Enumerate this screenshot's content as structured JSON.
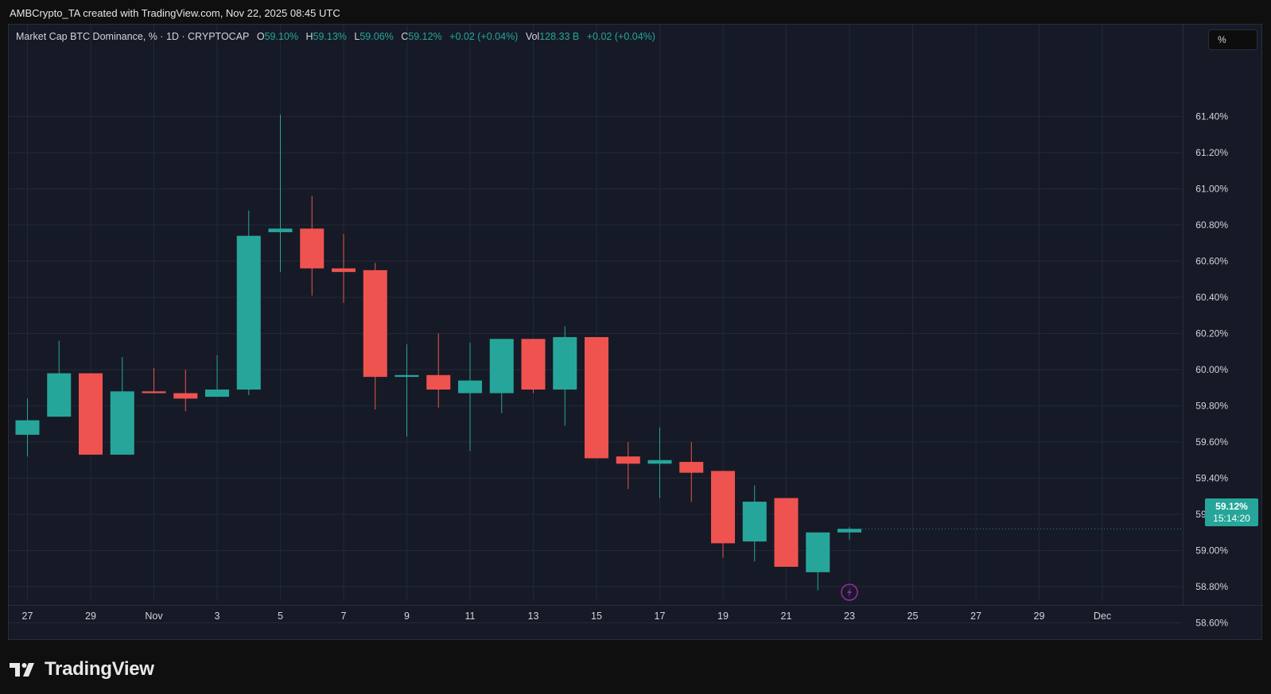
{
  "header": {
    "attribution": "AMBCrypto_TA created with TradingView.com, Nov 22, 2025 08:45 UTC"
  },
  "legend": {
    "symbol": "Market Cap BTC Dominance, % · 1D · CRYPTOCAP",
    "open_label": "O",
    "open": "59.10%",
    "high_label": "H",
    "high": "59.13%",
    "low_label": "L",
    "low": "59.06%",
    "close_label": "C",
    "close": "59.12%",
    "change": "+0.02 (+0.04%)",
    "vol_label": "Vol",
    "vol": "128.33 B",
    "vol_change": "+0.02 (+0.04%)"
  },
  "toolbar": {
    "mode_label": "%"
  },
  "last_price": {
    "value": "59.12%",
    "countdown": "15:14:20"
  },
  "brand": {
    "name": "TradingView",
    "logo_icon": "tradingview-logo-icon"
  },
  "event_icon": "lightning-event-icon",
  "colors": {
    "up": "#26a69a",
    "down": "#ef5350",
    "background": "#161a26",
    "grid": "#232838",
    "event": "#9c27b0"
  },
  "chart_data": {
    "type": "candlestick",
    "title": "Market Cap BTC Dominance, % · 1D · CRYPTOCAP",
    "ylabel": "%",
    "ylim": [
      58.5,
      61.6
    ],
    "y_ticks": [
      "61.40%",
      "61.20%",
      "61.00%",
      "60.80%",
      "60.60%",
      "60.40%",
      "60.20%",
      "60.00%",
      "59.80%",
      "59.60%",
      "59.40%",
      "59.20%",
      "59.00%",
      "58.80%",
      "58.60%"
    ],
    "x_tick_labels": [
      "27",
      "29",
      "Nov",
      "3",
      "5",
      "7",
      "9",
      "11",
      "13",
      "15",
      "17",
      "19",
      "21",
      "23",
      "25",
      "27",
      "29",
      "Dec"
    ],
    "grid": true,
    "candles": [
      {
        "date": "2025-10-27",
        "open": 59.64,
        "high": 59.84,
        "low": 59.52,
        "close": 59.72
      },
      {
        "date": "2025-10-28",
        "open": 59.74,
        "high": 60.16,
        "low": 59.74,
        "close": 59.98
      },
      {
        "date": "2025-10-29",
        "open": 59.98,
        "high": 59.98,
        "low": 59.53,
        "close": 59.53
      },
      {
        "date": "2025-10-30",
        "open": 59.53,
        "high": 60.07,
        "low": 59.53,
        "close": 59.88
      },
      {
        "date": "2025-10-31",
        "open": 59.88,
        "high": 60.01,
        "low": 59.87,
        "close": 59.87
      },
      {
        "date": "2025-11-01",
        "open": 59.87,
        "high": 60.0,
        "low": 59.77,
        "close": 59.84
      },
      {
        "date": "2025-11-02",
        "open": 59.85,
        "high": 60.08,
        "low": 59.85,
        "close": 59.89
      },
      {
        "date": "2025-11-03",
        "open": 59.89,
        "high": 60.88,
        "low": 59.86,
        "close": 60.74
      },
      {
        "date": "2025-11-04",
        "open": 60.76,
        "high": 61.41,
        "low": 60.54,
        "close": 60.78
      },
      {
        "date": "2025-11-05",
        "open": 60.78,
        "high": 60.96,
        "low": 60.41,
        "close": 60.56
      },
      {
        "date": "2025-11-06",
        "open": 60.56,
        "high": 60.75,
        "low": 60.37,
        "close": 60.54
      },
      {
        "date": "2025-11-07",
        "open": 60.55,
        "high": 60.59,
        "low": 59.78,
        "close": 59.96
      },
      {
        "date": "2025-11-08",
        "open": 59.96,
        "high": 60.14,
        "low": 59.63,
        "close": 59.97
      },
      {
        "date": "2025-11-09",
        "open": 59.97,
        "high": 60.2,
        "low": 59.79,
        "close": 59.89
      },
      {
        "date": "2025-11-10",
        "open": 59.87,
        "high": 60.15,
        "low": 59.55,
        "close": 59.94
      },
      {
        "date": "2025-11-11",
        "open": 59.87,
        "high": 60.17,
        "low": 59.76,
        "close": 60.17
      },
      {
        "date": "2025-11-12",
        "open": 60.17,
        "high": 60.17,
        "low": 59.87,
        "close": 59.89
      },
      {
        "date": "2025-11-13",
        "open": 59.89,
        "high": 60.24,
        "low": 59.69,
        "close": 60.18
      },
      {
        "date": "2025-11-14",
        "open": 60.18,
        "high": 60.18,
        "low": 59.51,
        "close": 59.51
      },
      {
        "date": "2025-11-15",
        "open": 59.52,
        "high": 59.6,
        "low": 59.34,
        "close": 59.48
      },
      {
        "date": "2025-11-16",
        "open": 59.48,
        "high": 59.68,
        "low": 59.29,
        "close": 59.5
      },
      {
        "date": "2025-11-17",
        "open": 59.49,
        "high": 59.6,
        "low": 59.27,
        "close": 59.43
      },
      {
        "date": "2025-11-18",
        "open": 59.44,
        "high": 59.44,
        "low": 58.96,
        "close": 59.04
      },
      {
        "date": "2025-11-19",
        "open": 59.05,
        "high": 59.36,
        "low": 58.94,
        "close": 59.27
      },
      {
        "date": "2025-11-20",
        "open": 59.29,
        "high": 59.29,
        "low": 58.91,
        "close": 58.91
      },
      {
        "date": "2025-11-21",
        "open": 58.88,
        "high": 59.1,
        "low": 58.78,
        "close": 59.1
      },
      {
        "date": "2025-11-22",
        "open": 59.1,
        "high": 59.13,
        "low": 59.06,
        "close": 59.12
      }
    ]
  }
}
